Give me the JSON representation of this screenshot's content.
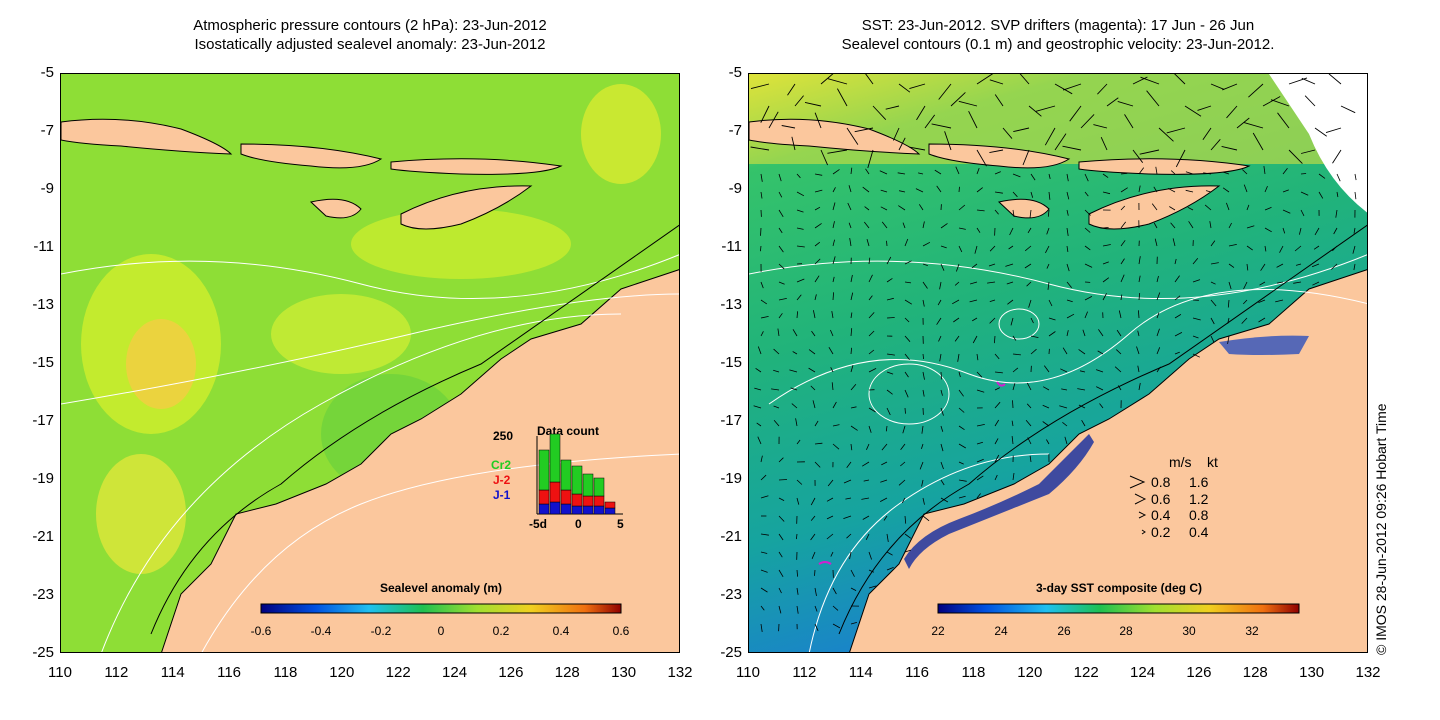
{
  "left_panel": {
    "title_line1": "Atmospheric pressure contours (2 hPa): 23-Jun-2012",
    "title_line2": "Isostatically adjusted sealevel anomaly: 23-Jun-2012",
    "colorbar": {
      "label": "Sealevel anomaly (m)",
      "ticks": [
        "-0.6",
        "-0.4",
        "-0.2",
        "0",
        "0.2",
        "0.4",
        "0.6"
      ],
      "range": [
        -0.6,
        0.6
      ]
    },
    "inset": {
      "title": "Data count",
      "y_max_label": "250",
      "series": [
        "Cr2",
        "J-2",
        "J-1"
      ],
      "series_colors": [
        "#22cc22",
        "#ee1111",
        "#1111cc"
      ],
      "x_ticks": [
        "-5d",
        "0",
        "5"
      ]
    }
  },
  "right_panel": {
    "title_line1": "SST: 23-Jun-2012. SVP drifters (magenta): 17 Jun - 26 Jun",
    "title_line2": "Sealevel contours (0.1 m) and geostrophic velocity: 23-Jun-2012.",
    "colorbar": {
      "label": "3-day SST composite (deg C)",
      "ticks": [
        "22",
        "24",
        "26",
        "28",
        "30",
        "32"
      ],
      "range": [
        22,
        33.5
      ]
    },
    "velocity_legend": {
      "header_ms": "m/s",
      "header_kt": "kt",
      "rows": [
        {
          "ms": "0.8",
          "kt": "1.6"
        },
        {
          "ms": "0.6",
          "kt": "1.2"
        },
        {
          "ms": "0.4",
          "kt": "0.8"
        },
        {
          "ms": "0.2",
          "kt": "0.4"
        }
      ]
    }
  },
  "axes": {
    "lat_ticks": [
      "-5",
      "-7",
      "-9",
      "-11",
      "-13",
      "-15",
      "-17",
      "-19",
      "-21",
      "-23",
      "-25"
    ],
    "lon_ticks": [
      "110",
      "112",
      "114",
      "116",
      "118",
      "120",
      "122",
      "124",
      "126",
      "128",
      "130",
      "132"
    ]
  },
  "credit": "© IMOS 28-Jun-2012 09:26 Hobart Time",
  "colors": {
    "land": "#fbc79d",
    "ocean_sla": "#7ed63a",
    "ocean_sst": "#25b86a",
    "contour": "#ffffff"
  }
}
